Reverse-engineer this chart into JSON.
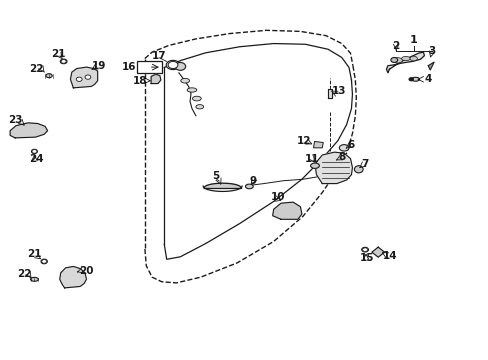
{
  "bg_color": "#ffffff",
  "line_color": "#1a1a1a",
  "fig_width": 4.89,
  "fig_height": 3.6,
  "dpi": 100,
  "door_outer": {
    "x": [
      0.3,
      0.32,
      0.36,
      0.42,
      0.5,
      0.58,
      0.65,
      0.7,
      0.73,
      0.745,
      0.748,
      0.745,
      0.73,
      0.7,
      0.64,
      0.56,
      0.47,
      0.39,
      0.34,
      0.315,
      0.3
    ],
    "y": [
      0.85,
      0.87,
      0.89,
      0.905,
      0.915,
      0.918,
      0.91,
      0.888,
      0.86,
      0.82,
      0.76,
      0.7,
      0.64,
      0.56,
      0.46,
      0.38,
      0.31,
      0.27,
      0.255,
      0.26,
      0.29
    ]
  },
  "door_inner": {
    "x": [
      0.34,
      0.38,
      0.44,
      0.51,
      0.58,
      0.64,
      0.69,
      0.72,
      0.738,
      0.742,
      0.738,
      0.72,
      0.685,
      0.63,
      0.56,
      0.48,
      0.41,
      0.365,
      0.345,
      0.34
    ],
    "y": [
      0.82,
      0.845,
      0.865,
      0.88,
      0.89,
      0.888,
      0.872,
      0.848,
      0.815,
      0.76,
      0.7,
      0.648,
      0.6,
      0.53,
      0.455,
      0.385,
      0.33,
      0.3,
      0.31,
      0.37
    ]
  }
}
